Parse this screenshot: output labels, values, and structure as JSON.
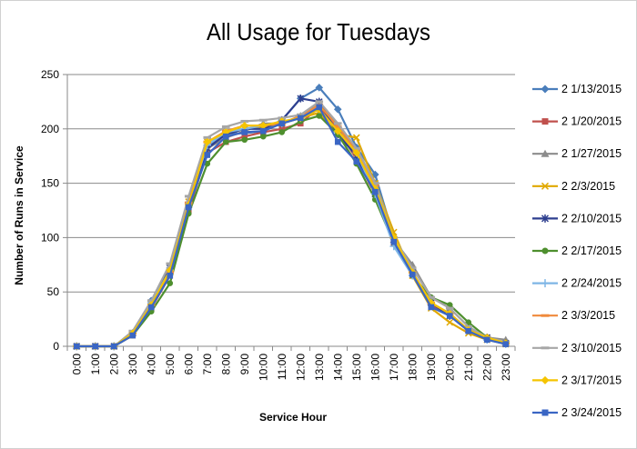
{
  "chart_data": {
    "type": "line",
    "title": "All Usage for Tuesdays",
    "xlabel": "Service Hour",
    "ylabel": "Number of Runs in Service",
    "ylim": [
      0,
      250
    ],
    "yticks": [
      "0",
      "50",
      "100",
      "150",
      "200",
      "250"
    ],
    "grid": true,
    "legend_position": "right",
    "categories": [
      "0:00",
      "1:00",
      "2:00",
      "3:00",
      "4:00",
      "5:00",
      "6:00",
      "7:00",
      "8:00",
      "9:00",
      "10:00",
      "11:00",
      "12:00",
      "13:00",
      "14:00",
      "15:00",
      "16:00",
      "17:00",
      "18:00",
      "19:00",
      "20:00",
      "21:00",
      "22:00",
      "23:00"
    ],
    "series": [
      {
        "name": "2 1/13/2015",
        "color": "#4A7EBB",
        "marker": "diamond",
        "values": [
          0,
          0,
          0,
          12,
          42,
          72,
          130,
          183,
          196,
          196,
          198,
          208,
          228,
          238,
          218,
          183,
          158,
          100,
          68,
          38,
          30,
          15,
          8,
          3
        ]
      },
      {
        "name": "2 1/20/2015",
        "color": "#C0504D",
        "marker": "square",
        "values": [
          0,
          0,
          0,
          10,
          35,
          65,
          125,
          178,
          188,
          193,
          197,
          200,
          205,
          220,
          200,
          172,
          140,
          95,
          65,
          38,
          30,
          15,
          8,
          2
        ]
      },
      {
        "name": "2 1/27/2015",
        "color": "#8C8C8C",
        "marker": "triangle",
        "values": [
          0,
          0,
          0,
          12,
          38,
          70,
          130,
          182,
          192,
          198,
          205,
          205,
          212,
          225,
          203,
          175,
          150,
          98,
          75,
          45,
          35,
          18,
          8,
          6
        ]
      },
      {
        "name": "2 2/3/2015",
        "color": "#E0A800",
        "marker": "x",
        "values": [
          0,
          0,
          0,
          12,
          38,
          68,
          133,
          188,
          197,
          200,
          202,
          205,
          210,
          215,
          195,
          192,
          150,
          105,
          65,
          35,
          22,
          12,
          6,
          2
        ]
      },
      {
        "name": "2 2/10/2015",
        "color": "#2E3F8F",
        "marker": "star",
        "values": [
          0,
          0,
          0,
          12,
          40,
          72,
          130,
          182,
          195,
          200,
          200,
          208,
          228,
          225,
          195,
          175,
          140,
          98,
          68,
          40,
          28,
          15,
          8,
          3
        ]
      },
      {
        "name": "2 2/17/2015",
        "color": "#4E8F2E",
        "marker": "circle",
        "values": [
          0,
          0,
          0,
          10,
          32,
          58,
          122,
          168,
          188,
          190,
          193,
          197,
          207,
          212,
          195,
          168,
          135,
          95,
          65,
          45,
          38,
          22,
          8,
          3
        ]
      },
      {
        "name": "2 2/24/2015",
        "color": "#7EB6E6",
        "marker": "plus",
        "values": [
          0,
          0,
          0,
          12,
          40,
          70,
          132,
          185,
          197,
          200,
          203,
          205,
          210,
          218,
          198,
          178,
          140,
          92,
          65,
          40,
          30,
          15,
          6,
          2
        ]
      },
      {
        "name": "2 3/3/2015",
        "color": "#F08A3C",
        "marker": "dash",
        "values": [
          0,
          0,
          0,
          12,
          38,
          68,
          132,
          188,
          198,
          203,
          203,
          205,
          212,
          222,
          202,
          180,
          148,
          100,
          68,
          40,
          30,
          15,
          8,
          3
        ]
      },
      {
        "name": "2 3/10/2015",
        "color": "#A6A6A6",
        "marker": "dash",
        "values": [
          0,
          0,
          0,
          14,
          42,
          76,
          138,
          192,
          202,
          207,
          208,
          210,
          213,
          225,
          205,
          182,
          150,
          100,
          72,
          45,
          35,
          18,
          8,
          4
        ]
      },
      {
        "name": "2 3/17/2015",
        "color": "#F5C400",
        "marker": "diamond",
        "values": [
          0,
          0,
          0,
          12,
          38,
          70,
          130,
          188,
          197,
          203,
          203,
          207,
          210,
          218,
          198,
          178,
          145,
          100,
          68,
          40,
          30,
          15,
          8,
          3
        ]
      },
      {
        "name": "2 3/24/2015",
        "color": "#3A66C4",
        "marker": "square",
        "values": [
          0,
          0,
          0,
          10,
          36,
          65,
          128,
          176,
          193,
          197,
          198,
          205,
          210,
          220,
          188,
          170,
          142,
          96,
          66,
          36,
          28,
          14,
          6,
          2
        ]
      }
    ]
  }
}
